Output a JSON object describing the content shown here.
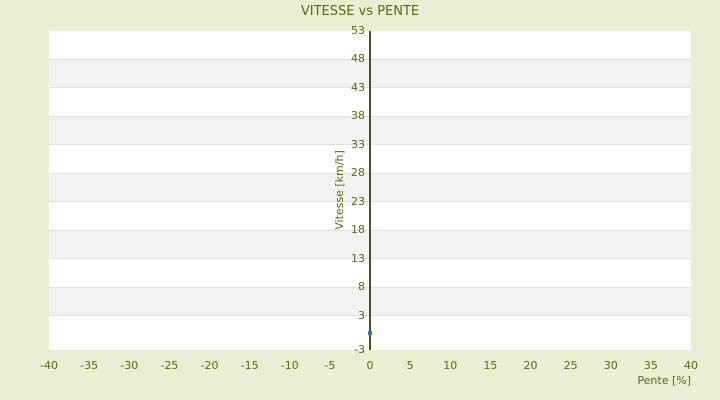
{
  "chart_data": {
    "type": "scatter",
    "title": "VITESSE vs PENTE",
    "xlabel": "Pente [%]",
    "ylabel": "Vitesse [km/h]",
    "xlim": [
      -40,
      40
    ],
    "ylim": [
      -3,
      53
    ],
    "x_ticks": [
      -40,
      -35,
      -30,
      -25,
      -20,
      -15,
      -10,
      -5,
      0,
      5,
      10,
      15,
      20,
      25,
      30,
      35,
      40
    ],
    "y_ticks": [
      53,
      48,
      43,
      38,
      33,
      28,
      23,
      18,
      13,
      8,
      3,
      -3
    ],
    "points": [
      {
        "x": 0,
        "y": 0
      }
    ],
    "grid": "alternating horizontal bands",
    "legend": "none",
    "y_axis_position": "at x=0"
  },
  "colors": {
    "background": "#e9efd2",
    "text": "#5c661c",
    "band_light": "#ffffff",
    "band_dark": "#f2f2f2",
    "gridline": "#e0e0e0",
    "plot_border": "#d4d4d4",
    "axis_line": "#4b560f",
    "point": "#3a7ca0"
  }
}
